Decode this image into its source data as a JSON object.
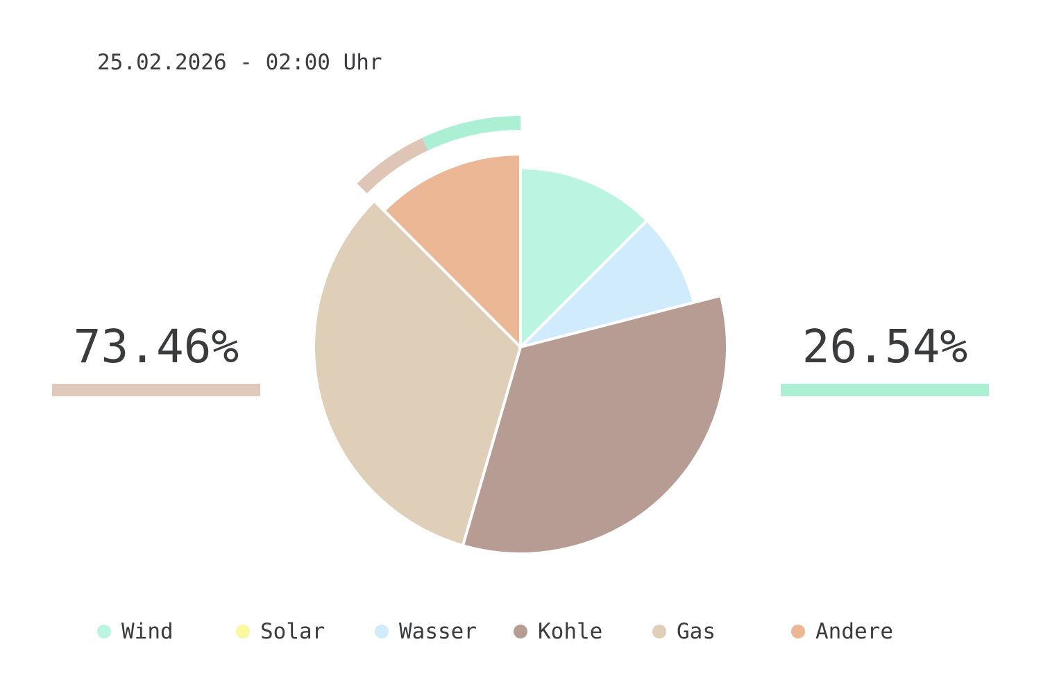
{
  "header": {
    "timestamp": "25.02.2026 - 02:00 Uhr"
  },
  "stats": {
    "left": {
      "value": "73.46%",
      "color": "#e0c9bb"
    },
    "right": {
      "value": "26.54%",
      "color": "#abf0d5"
    }
  },
  "chart_data": {
    "type": "pie",
    "start": "12 o'clock",
    "direction": "clockwise",
    "slices": [
      {
        "name": "Wind",
        "value": 12.5,
        "color": "#bbf5e1",
        "exploded": false
      },
      {
        "name": "Solar",
        "value": 0,
        "color": "#faf9a0",
        "exploded": false
      },
      {
        "name": "Wasser",
        "value": 8.5,
        "color": "#cfebfc",
        "exploded": false
      },
      {
        "name": "Kohle",
        "value": 33.5,
        "color": "#b79c93",
        "exploded": true
      },
      {
        "name": "Gas",
        "value": 33.0,
        "color": "#dfceb8",
        "exploded": true
      },
      {
        "name": "Andere",
        "value": 12.5,
        "color": "#ebb794",
        "exploded": true
      }
    ],
    "outer_ring": [
      {
        "name": "Gas",
        "value": 5.5,
        "color": "#dec5b6"
      },
      {
        "name": "Wind",
        "value": 7.0,
        "color": "#abf0d5"
      }
    ],
    "legend": [
      "Wind",
      "Solar",
      "Wasser",
      "Kohle",
      "Gas",
      "Andere"
    ]
  }
}
